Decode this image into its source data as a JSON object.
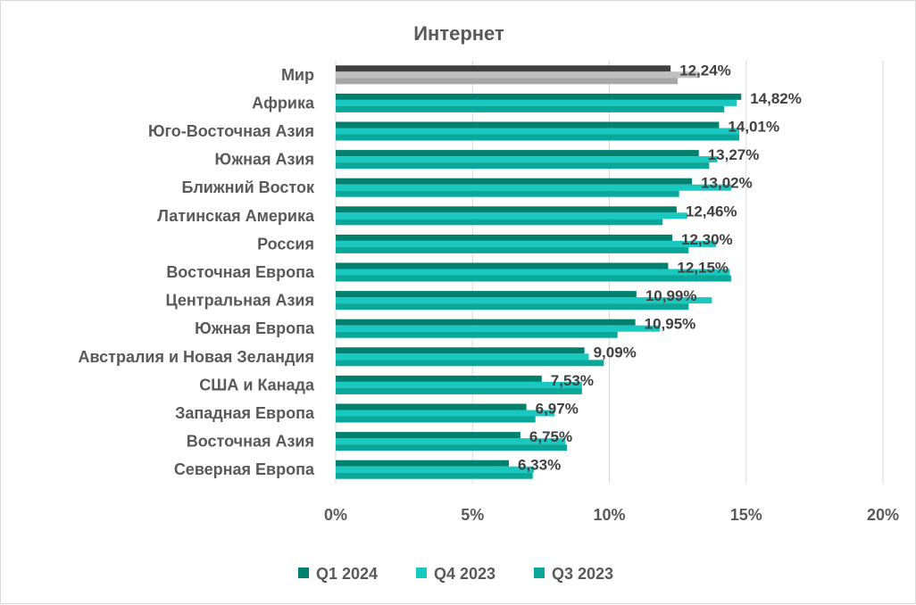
{
  "chart_data": {
    "type": "bar",
    "orientation": "horizontal",
    "title": "Интернет",
    "categories": [
      "Мир",
      "Африка",
      "Юго-Восточная Азия",
      "Южная Азия",
      "Ближний Восток",
      "Латинская Америка",
      "Россия",
      "Восточная Европа",
      "Центральная Азия",
      "Южная Европа",
      "Австралия и Новая Зеландия",
      "США и Канада",
      "Западная Европа",
      "Восточная Азия",
      "Северная Европа"
    ],
    "series": [
      {
        "name": "Q1 2024",
        "color": "#00806e",
        "values": [
          12.24,
          14.82,
          14.01,
          13.27,
          13.02,
          12.46,
          12.3,
          12.15,
          10.99,
          10.95,
          9.09,
          7.53,
          6.97,
          6.75,
          6.33
        ]
      },
      {
        "name": "Q4 2023",
        "color": "#19c8bf",
        "values": [
          13.3,
          14.65,
          14.75,
          13.95,
          14.45,
          12.85,
          13.9,
          14.4,
          13.75,
          11.85,
          9.25,
          9.0,
          8.0,
          8.4,
          7.25
        ]
      },
      {
        "name": "Q3 2023",
        "color": "#0aa89a",
        "values": [
          12.5,
          14.2,
          14.75,
          13.65,
          12.55,
          11.95,
          12.9,
          14.45,
          12.9,
          10.3,
          9.8,
          9.0,
          7.3,
          8.45,
          7.2
        ]
      }
    ],
    "highlight": {
      "category": "Мир",
      "colors": [
        "#404040",
        "#bfbfbf",
        "#a6a6a6"
      ]
    },
    "data_labels": [
      "12,24%",
      "14,82%",
      "14,01%",
      "13,27%",
      "13,02%",
      "12,46%",
      "12,30%",
      "12,15%",
      "10,99%",
      "10,95%",
      "9,09%",
      "7,53%",
      "6,97%",
      "6,75%",
      "6,33%"
    ],
    "xlim": [
      0,
      20
    ],
    "xticks": [
      0,
      5,
      10,
      15,
      20
    ],
    "xtick_labels": [
      "0%",
      "5%",
      "10%",
      "15%",
      "20%"
    ],
    "grid": "vertical",
    "legend_position": "bottom"
  }
}
